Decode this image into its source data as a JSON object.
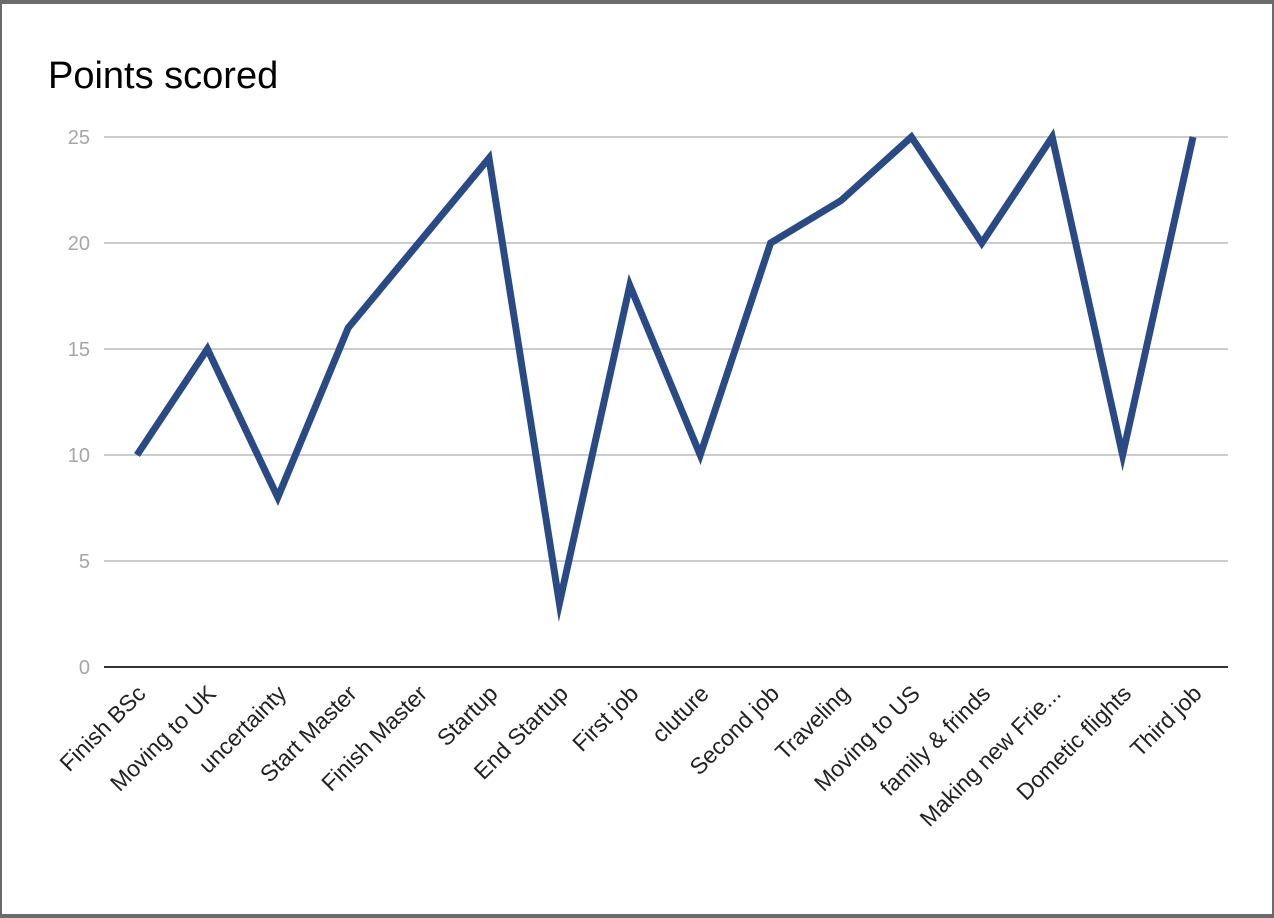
{
  "chart_data": {
    "type": "line",
    "title": "Points scored",
    "xlabel": "",
    "ylabel": "",
    "categories": [
      "Finish BSc",
      "Moving to UK",
      "uncertainty",
      "Start Master",
      "Finish Master",
      "Startup",
      "End Startup",
      "First job",
      "cluture",
      "Second job",
      "Traveling",
      "Moving to US",
      "family & frinds",
      "Making new Frie...",
      "Dometic flights",
      "Third job"
    ],
    "series": [
      {
        "values": [
          10,
          15,
          8,
          16,
          20,
          24,
          3,
          18,
          10,
          20,
          22,
          25,
          20,
          25,
          10,
          25
        ],
        "color": "#2a4a86"
      }
    ],
    "ylim": [
      0,
      25
    ],
    "yticks": [
      "0",
      "5",
      "10",
      "15",
      "20",
      "25"
    ],
    "grid": true,
    "legend": "none"
  }
}
